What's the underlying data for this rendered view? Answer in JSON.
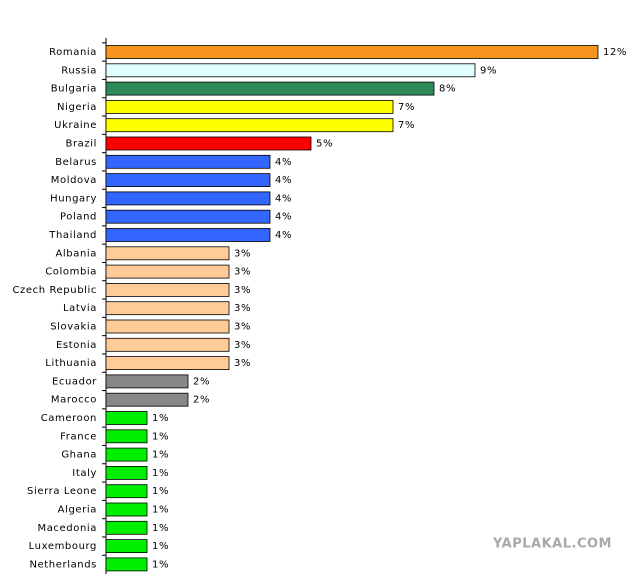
{
  "chart_data": {
    "type": "bar",
    "orientation": "horizontal",
    "categories": [
      "Romania",
      "Russia",
      "Bulgaria",
      "Nigeria",
      "Ukraine",
      "Brazil",
      "Belarus",
      "Moldova",
      "Hungary",
      "Poland",
      "Thailand",
      "Albania",
      "Colombia",
      "Czech Republic",
      "Latvia",
      "Slovakia",
      "Estonia",
      "Lithuania",
      "Ecuador",
      "Marocco",
      "Cameroon",
      "France",
      "Ghana",
      "Italy",
      "Sierra Leone",
      "Algeria",
      "Macedonia",
      "Luxembourg",
      "Netherlands"
    ],
    "values": [
      12,
      9,
      8,
      7,
      7,
      5,
      4,
      4,
      4,
      4,
      4,
      3,
      3,
      3,
      3,
      3,
      3,
      3,
      2,
      2,
      1,
      1,
      1,
      1,
      1,
      1,
      1,
      1,
      1
    ],
    "value_labels": [
      "12%",
      "9%",
      "8%",
      "7%",
      "7%",
      "5%",
      "4%",
      "4%",
      "4%",
      "4%",
      "4%",
      "3%",
      "3%",
      "3%",
      "3%",
      "3%",
      "3%",
      "3%",
      "2%",
      "2%",
      "1%",
      "1%",
      "1%",
      "1%",
      "1%",
      "1%",
      "1%",
      "1%",
      "1%"
    ],
    "colors": [
      "#f7941d",
      "#e0ffff",
      "#2e8b57",
      "#ffff00",
      "#ffff00",
      "#ff0000",
      "#3366ff",
      "#3366ff",
      "#3366ff",
      "#3366ff",
      "#3366ff",
      "#ffcc99",
      "#ffcc99",
      "#ffcc99",
      "#ffcc99",
      "#ffcc99",
      "#ffcc99",
      "#ffcc99",
      "#888888",
      "#888888",
      "#00ee00",
      "#00ee00",
      "#00ee00",
      "#00ee00",
      "#00ee00",
      "#00ee00",
      "#00ee00",
      "#00ee00",
      "#00ee00"
    ],
    "xlim": [
      0,
      12
    ],
    "watermark": "YAPLAKAL.COM"
  }
}
